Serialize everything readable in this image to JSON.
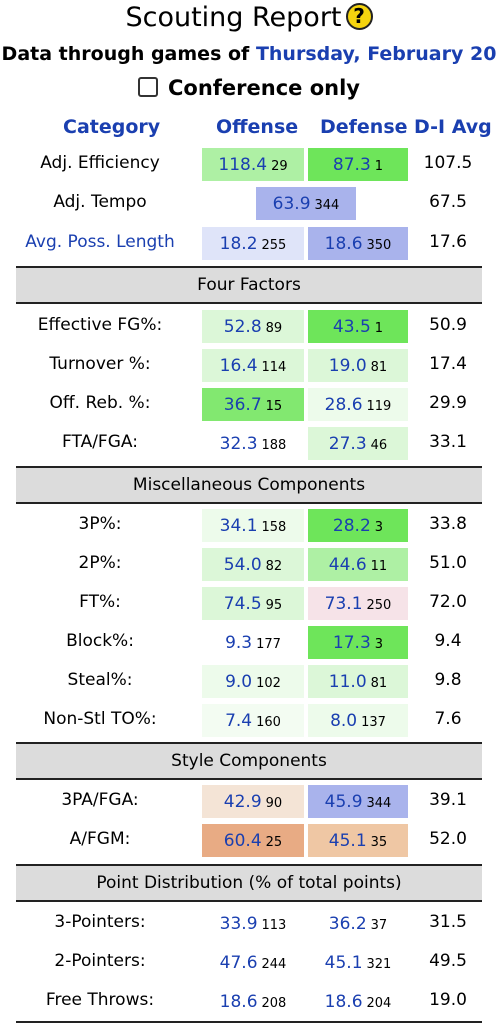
{
  "header": {
    "title": "Scouting Report",
    "help_glyph": "?",
    "subtitle_prefix": "Data through games of",
    "subtitle_date": "Thursday, February 20",
    "conference_label": "Conference only"
  },
  "columns": {
    "category": "Category",
    "offense": "Offense",
    "defense": "Defense",
    "avg": "D-I Avg"
  },
  "main_rows": [
    {
      "label": "Adj. Efficiency",
      "off": "118.4",
      "off_rank": "29",
      "def": "87.3",
      "def_rank": "1",
      "avg": "107.5"
    },
    {
      "label": "Adj. Tempo",
      "combined": "63.9",
      "combined_rank": "344",
      "avg": "67.5"
    },
    {
      "label": "Avg. Poss. Length",
      "off": "18.2",
      "off_rank": "255",
      "def": "18.6",
      "def_rank": "350",
      "avg": "17.6"
    }
  ],
  "sections": [
    {
      "title": "Four Factors",
      "rows": [
        {
          "label": "Effective FG%:",
          "off": "52.8",
          "off_rank": "89",
          "def": "43.5",
          "def_rank": "1",
          "avg": "50.9"
        },
        {
          "label": "Turnover %:",
          "off": "16.4",
          "off_rank": "114",
          "def": "19.0",
          "def_rank": "81",
          "avg": "17.4"
        },
        {
          "label": "Off. Reb. %:",
          "off": "36.7",
          "off_rank": "15",
          "def": "28.6",
          "def_rank": "119",
          "avg": "29.9"
        },
        {
          "label": "FTA/FGA:",
          "off": "32.3",
          "off_rank": "188",
          "def": "27.3",
          "def_rank": "46",
          "avg": "33.1"
        }
      ]
    },
    {
      "title": "Miscellaneous Components",
      "rows": [
        {
          "label": "3P%:",
          "off": "34.1",
          "off_rank": "158",
          "def": "28.2",
          "def_rank": "3",
          "avg": "33.8"
        },
        {
          "label": "2P%:",
          "off": "54.0",
          "off_rank": "82",
          "def": "44.6",
          "def_rank": "11",
          "avg": "51.0"
        },
        {
          "label": "FT%:",
          "off": "74.5",
          "off_rank": "95",
          "def": "73.1",
          "def_rank": "250",
          "avg": "72.0"
        },
        {
          "label": "Block%:",
          "off": "9.3",
          "off_rank": "177",
          "def": "17.3",
          "def_rank": "3",
          "avg": "9.4"
        },
        {
          "label": "Steal%:",
          "off": "9.0",
          "off_rank": "102",
          "def": "11.0",
          "def_rank": "81",
          "avg": "9.8"
        },
        {
          "label": "Non-Stl TO%:",
          "off": "7.4",
          "off_rank": "160",
          "def": "8.0",
          "def_rank": "137",
          "avg": "7.6"
        }
      ]
    },
    {
      "title": "Style Components",
      "rows": [
        {
          "label": "3PA/FGA:",
          "off": "42.9",
          "off_rank": "90",
          "def": "45.9",
          "def_rank": "344",
          "avg": "39.1"
        },
        {
          "label": "A/FGM:",
          "off": "60.4",
          "off_rank": "25",
          "def": "45.1",
          "def_rank": "35",
          "avg": "52.0"
        }
      ]
    },
    {
      "title": "Point Distribution (% of total points)",
      "rows": [
        {
          "label": "3-Pointers:",
          "off": "33.9",
          "off_rank": "113",
          "def": "36.2",
          "def_rank": "37",
          "avg": "31.5"
        },
        {
          "label": "2-Pointers:",
          "off": "47.6",
          "off_rank": "244",
          "def": "45.1",
          "def_rank": "321",
          "avg": "49.5"
        },
        {
          "label": "Free Throws:",
          "off": "18.6",
          "off_rank": "208",
          "def": "18.6",
          "def_rank": "204",
          "avg": "19.0"
        }
      ]
    }
  ],
  "colors": {
    "link_blue": "#1a3fb0",
    "green_strong": "#6ee55a",
    "green_medium": "#aef0a4",
    "green_light": "#dcf7d8",
    "green_faint": "#edfbeb",
    "blue_medium": "#a9b3ec",
    "blue_light": "#dfe4f9",
    "pink_light": "#f6e3e8",
    "tan_light": "#f4e4d6",
    "tan_medium": "#efc7a4",
    "orange_medium": "#e8ab84",
    "section_gray": "#dcdcdc"
  }
}
